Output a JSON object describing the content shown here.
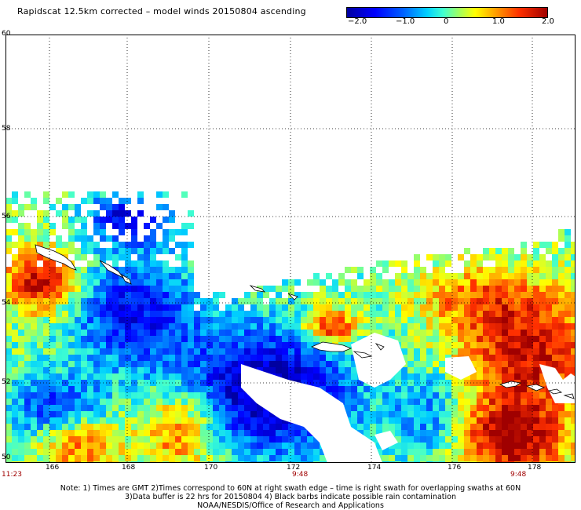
{
  "title": "Rapidscat 12.5km corrected – model winds 20150804 ascending",
  "colorbar": {
    "ticks": [
      "−2.0",
      "−1.0",
      "0",
      "1.0",
      "2.0"
    ]
  },
  "map": {
    "lat_labels": [
      "60",
      "58",
      "56",
      "54",
      "52",
      "50"
    ],
    "lon_labels": [
      "166",
      "168",
      "170",
      "172",
      "174",
      "176",
      "178"
    ]
  },
  "times": {
    "left": "11:23",
    "mid1": "9:48",
    "mid2": "9:48"
  },
  "notes": {
    "line1": "Note: 1) Times are GMT 2)Times correspond to 60N at right swath edge – time is right swath for overlapping swaths at 60N",
    "line2": "3)Data buffer is 22 hrs for 20150804 4) Black barbs indicate possible rain contamination",
    "line3": "NOAA/NESDIS/Office of Research and Applications"
  }
}
